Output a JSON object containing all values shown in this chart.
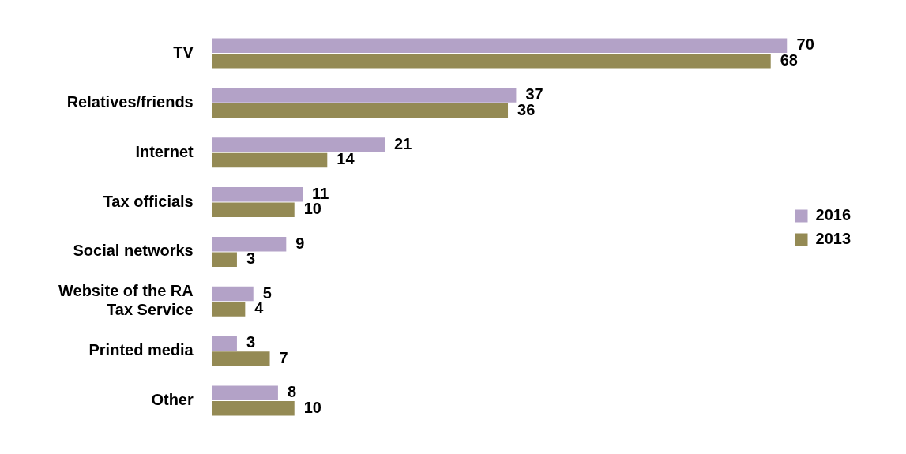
{
  "chart_data": {
    "type": "bar",
    "orientation": "horizontal",
    "categories": [
      "TV",
      "Relatives/friends",
      "Internet",
      "Tax officials",
      "Social networks",
      "Website of the RA Tax Service",
      "Printed media",
      "Other"
    ],
    "series": [
      {
        "name": "2016",
        "color": "#b3a2c7",
        "values": [
          70,
          37,
          21,
          11,
          9,
          5,
          3,
          8
        ]
      },
      {
        "name": "2013",
        "color": "#948a54",
        "values": [
          68,
          36,
          14,
          10,
          3,
          4,
          7,
          10
        ]
      }
    ],
    "data_labels": true,
    "legend": "right"
  }
}
